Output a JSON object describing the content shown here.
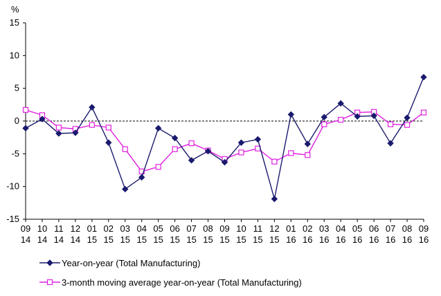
{
  "chart_data": {
    "type": "line",
    "ylabel": "%",
    "ylim": [
      -15,
      15
    ],
    "yticks": [
      15,
      10,
      5,
      0,
      -5,
      -10,
      -15
    ],
    "zero_line": "dashed",
    "grid": false,
    "legend_position": "bottom-left",
    "x_months": [
      "09",
      "10",
      "11",
      "12",
      "01",
      "02",
      "03",
      "04",
      "05",
      "06",
      "07",
      "08",
      "09",
      "10",
      "11",
      "12",
      "01",
      "02",
      "03",
      "04",
      "05",
      "06",
      "07",
      "08",
      "09"
    ],
    "x_years": [
      "14",
      "14",
      "14",
      "14",
      "15",
      "15",
      "15",
      "15",
      "15",
      "15",
      "15",
      "15",
      "15",
      "15",
      "15",
      "15",
      "16",
      "16",
      "16",
      "16",
      "16",
      "16",
      "16",
      "16",
      "16"
    ],
    "series": [
      {
        "name": "Year-on-year (Total Manufacturing)",
        "color": "#1a1a6e",
        "marker": "diamond",
        "values": [
          -1.1,
          0.3,
          -1.9,
          -1.8,
          2.1,
          -3.3,
          -10.4,
          -8.6,
          -1.1,
          -2.6,
          -6.0,
          -4.6,
          -6.3,
          -3.3,
          -2.8,
          -11.9,
          1.0,
          -3.5,
          0.6,
          2.7,
          0.7,
          0.8,
          -3.4,
          0.5,
          6.7
        ]
      },
      {
        "name": "3-month moving average year-on-year (Total Manufacturing)",
        "color": "#e020e0",
        "marker": "square-open",
        "values": [
          1.7,
          0.9,
          -1.0,
          -1.2,
          -0.6,
          -1.0,
          -4.3,
          -7.7,
          -7.0,
          -4.3,
          -3.4,
          -4.5,
          -5.8,
          -4.8,
          -4.2,
          -6.2,
          -4.9,
          -5.2,
          -0.5,
          0.2,
          1.3,
          1.4,
          -0.5,
          -0.6,
          1.3
        ]
      }
    ]
  }
}
